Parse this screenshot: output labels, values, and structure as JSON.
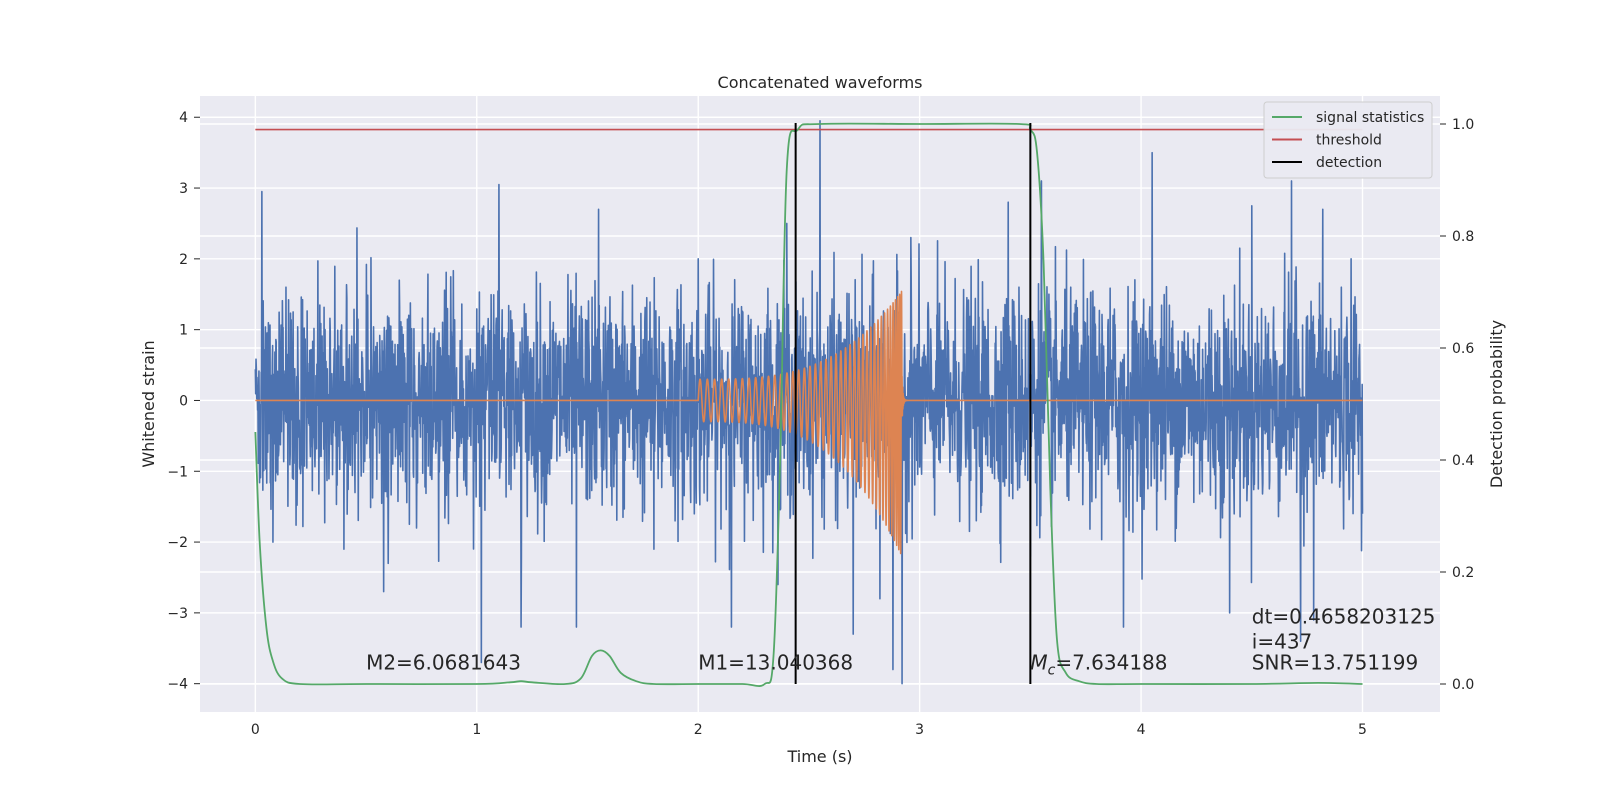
{
  "chart_data": {
    "type": "line",
    "title": "Concatenated waveforms",
    "xlabel": "Time (s)",
    "ylabel": "Whitened strain",
    "y2label": "Detection probability",
    "xlim": [
      -0.25,
      5.35
    ],
    "ylim": [
      -4.4,
      4.3
    ],
    "y2lim": [
      -0.05,
      1.05
    ],
    "x_ticks": [
      0,
      1,
      2,
      3,
      4,
      5
    ],
    "y_ticks": [
      -4,
      -3,
      -2,
      -1,
      0,
      1,
      2,
      3,
      4
    ],
    "y2_ticks": [
      0.0,
      0.2,
      0.4,
      0.6,
      0.8,
      1.0
    ],
    "x_tick_labels": [
      "0",
      "1",
      "2",
      "3",
      "4",
      "5"
    ],
    "y_tick_labels": [
      "−4",
      "−3",
      "−2",
      "−1",
      "0",
      "1",
      "2",
      "3",
      "4"
    ],
    "y2_tick_labels": [
      "0.0",
      "0.2",
      "0.4",
      "0.6",
      "0.8",
      "1.0"
    ],
    "grid": true,
    "legend_position": "top-right",
    "series": [
      {
        "name": "signal statistics",
        "axis": "right",
        "color": "#55a868",
        "x": [
          0,
          0.02,
          0.05,
          0.08,
          0.12,
          0.2,
          0.5,
          1.0,
          1.15,
          1.2,
          1.25,
          1.4,
          1.47,
          1.52,
          1.56,
          1.6,
          1.65,
          1.72,
          1.8,
          2.0,
          2.2,
          2.3,
          2.34,
          2.37,
          2.4,
          2.45,
          2.55,
          3.0,
          3.45,
          3.5,
          3.53,
          3.56,
          3.59,
          3.62,
          3.66,
          3.72,
          3.8,
          4.0,
          4.5,
          4.8,
          5.0
        ],
        "y": [
          0.45,
          0.25,
          0.1,
          0.04,
          0.01,
          0.0,
          0.0,
          0.0,
          0.003,
          0.005,
          0.003,
          0.0,
          0.01,
          0.05,
          0.06,
          0.05,
          0.02,
          0.005,
          0.0,
          0.0,
          0.0,
          0.0,
          0.05,
          0.4,
          0.92,
          0.99,
          1.0,
          1.0,
          1.0,
          0.99,
          0.95,
          0.75,
          0.35,
          0.08,
          0.02,
          0.005,
          0.0,
          0.0,
          0.0,
          0.002,
          0.0
        ]
      },
      {
        "name": "threshold",
        "axis": "right",
        "color": "#c44e52",
        "x": [
          0,
          5
        ],
        "y": [
          0.99,
          0.99
        ]
      },
      {
        "name": "detection",
        "axis": "right",
        "color": "#000000",
        "type": "vlines",
        "x": [
          2.44,
          3.5
        ],
        "y": [
          0,
          1.0
        ]
      },
      {
        "name": "",
        "axis": "left",
        "color": "#4c72b0",
        "type": "noise",
        "x_range": [
          0,
          5
        ],
        "typical_amplitude": 0.8,
        "peaks": [
          [
            0.03,
            2.95
          ],
          [
            0.08,
            -2.0
          ],
          [
            0.4,
            -2.1
          ],
          [
            0.58,
            -2.7
          ],
          [
            0.6,
            -2.3
          ],
          [
            1.02,
            -3.7
          ],
          [
            1.1,
            3.05
          ],
          [
            1.2,
            -3.2
          ],
          [
            1.45,
            -3.2
          ],
          [
            1.55,
            2.7
          ],
          [
            1.8,
            -2.1
          ],
          [
            2.0,
            2.0
          ],
          [
            2.15,
            -3.2
          ],
          [
            2.4,
            2.5
          ],
          [
            2.55,
            3.95
          ],
          [
            2.7,
            -3.3
          ],
          [
            2.82,
            -2.8
          ],
          [
            2.88,
            -3.8
          ],
          [
            2.92,
            -4.0
          ],
          [
            2.96,
            2.3
          ],
          [
            3.4,
            2.8
          ],
          [
            3.46,
            1.2
          ],
          [
            3.5,
            -2.2
          ],
          [
            3.55,
            3.1
          ],
          [
            3.92,
            -3.2
          ],
          [
            4.05,
            3.5
          ],
          [
            4.4,
            -3.0
          ],
          [
            4.5,
            2.75
          ],
          [
            4.68,
            3.1
          ],
          [
            4.72,
            -3.4
          ],
          [
            4.78,
            -3.1
          ],
          [
            4.82,
            2.7
          ],
          [
            5.0,
            1.0
          ],
          [
            5.0,
            -1.6
          ]
        ]
      },
      {
        "name": "",
        "axis": "left",
        "color": "#dd8452",
        "type": "chirp",
        "x_start": 2.0,
        "x_end": 2.92,
        "start_amplitude": 0.3,
        "end_amplitude_pos": 1.55,
        "end_amplitude_neg": -2.2,
        "baseline": 0
      }
    ],
    "annotations": [
      {
        "text": "M2=6.0681643",
        "x": 0.5,
        "y": -3.8
      },
      {
        "text": "M1=13.040368",
        "x": 2.0,
        "y": -3.8
      },
      {
        "text_main": "M",
        "text_sub": "c",
        "text_rest": "=7.634188",
        "x": 3.5,
        "y": -3.8
      },
      {
        "text": "dt=0.4658203125",
        "x": 4.5,
        "y": -3.15
      },
      {
        "text": " i=437",
        "x": 4.5,
        "y": -3.5
      },
      {
        "text": "SNR=13.751199",
        "x": 4.5,
        "y": -3.8
      }
    ]
  }
}
